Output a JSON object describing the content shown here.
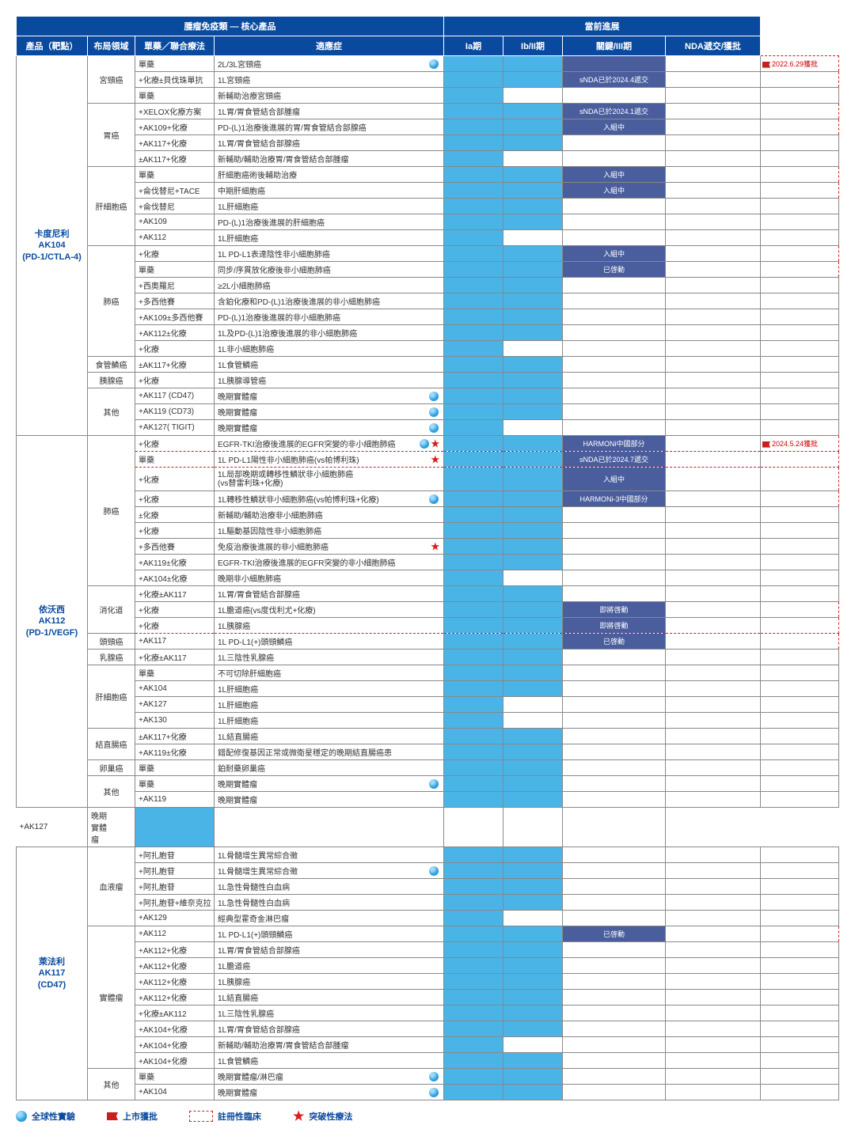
{
  "colors": {
    "header_bg": "#0a4a9e",
    "product_text": "#0a4a9e",
    "bar_light": "#4bb4e6",
    "bar_dark": "#4a5e9e",
    "dashed": "#d91c1c",
    "flag": "#c71e1e"
  },
  "headerSuper": {
    "left": "腫瘤免疫類 — 核心產品",
    "right": "當前進展"
  },
  "headers": [
    "產品（靶點）",
    "布局領域",
    "單藥／聯合療法",
    "適應症",
    "Ia期",
    "Ib/II期",
    "關鍵/III期",
    "NDA遞交/獲批"
  ],
  "legend": {
    "globe": "全球性實驗",
    "flag": "上市獲批",
    "dashed": "註冊性臨床",
    "star": "突破性療法"
  },
  "rows": [
    {
      "product": "卡度尼利\nAK104\n(PD-1/CTLA-4)",
      "prows": 24,
      "domain": "宮頸癌",
      "drows": 3,
      "therapy": "單藥",
      "indication": "2L/3L宮頸癌",
      "globe": true,
      "p": [
        "L",
        "L",
        "D",
        ""
      ],
      "nda": "2022.6.29獲批",
      "flag": true,
      "dash": "row"
    },
    {
      "therapy": "+化療±貝伐珠單抗",
      "indication": "1L宮頸癌",
      "p": [
        "L",
        "L",
        "D:sNDA已於2024.4遞交",
        ""
      ],
      "dash": "bottom"
    },
    {
      "therapy": "單藥",
      "indication": "新輔助治療宮頸癌",
      "p": [
        "L",
        "",
        "",
        ""
      ]
    },
    {
      "domain": "胃癌",
      "drows": 4,
      "therapy": "+XELOX化療方案",
      "indication": "1L胃/胃食管結合部腫瘤",
      "p": [
        "L",
        "L",
        "D:sNDA已於2024.1遞交",
        ""
      ],
      "dash": "row"
    },
    {
      "therapy": "+AK109+化療",
      "indication": "PD-(L)1治療後進展的胃/胃食管結合部腺癌",
      "p": [
        "L",
        "L",
        "D:入組中",
        ""
      ],
      "dash": "bottom"
    },
    {
      "therapy": "+AK117+化療",
      "indication": "1L胃/胃食管結合部腺癌",
      "p": [
        "L",
        "L",
        "",
        ""
      ]
    },
    {
      "therapy": "±AK117+化療",
      "indication": "新輔助/輔助治療胃/胃食管結合部腫瘤",
      "p": [
        "L",
        "",
        "",
        ""
      ]
    },
    {
      "domain": "肝細胞癌",
      "drows": 5,
      "therapy": "單藥",
      "indication": "肝細胞癌術後輔助治療",
      "p": [
        "L",
        "L",
        "D:入組中",
        ""
      ],
      "dash": "row"
    },
    {
      "therapy": "+侖伐替尼+TACE",
      "indication": "中期肝細胞癌",
      "p": [
        "L",
        "L",
        "D:入組中",
        ""
      ],
      "dash": "bottom"
    },
    {
      "therapy": "+侖伐替尼",
      "indication": "1L肝細胞癌",
      "p": [
        "L",
        "L",
        "",
        ""
      ]
    },
    {
      "therapy": "+AK109",
      "indication": "PD-(L)1治療後進展的肝細胞癌",
      "p": [
        "L",
        "L",
        "",
        ""
      ]
    },
    {
      "therapy": "+AK112",
      "indication": "1L肝細胞癌",
      "p": [
        "L",
        "",
        "",
        ""
      ]
    },
    {
      "domain": "肺癌",
      "drows": 7,
      "therapy": "+化療",
      "indication": "1L PD-L1表達陰性非小細胞肺癌",
      "p": [
        "L",
        "L",
        "D:入組中",
        ""
      ],
      "dash": "row"
    },
    {
      "therapy": "單藥",
      "indication": "同步/序貫放化療後非小細胞肺癌",
      "p": [
        "L",
        "L",
        "D:已啓動",
        ""
      ],
      "dash": "bottom"
    },
    {
      "therapy": "+西奧羅尼",
      "indication": "≥2L小細胞肺癌",
      "p": [
        "L",
        "L",
        "",
        ""
      ]
    },
    {
      "therapy": "+多西他賽",
      "indication": "含鉑化療和PD-(L)1治療後進展的非小細胞肺癌",
      "p": [
        "L",
        "L",
        "",
        ""
      ]
    },
    {
      "therapy": "+AK109±多西他賽",
      "indication": "PD-(L)1治療後進展的非小細胞肺癌",
      "p": [
        "L",
        "L",
        "",
        ""
      ]
    },
    {
      "therapy": "+AK112±化療",
      "indication": "1L及PD-(L)1治療後進展的非小細胞肺癌",
      "p": [
        "L",
        "L",
        "",
        ""
      ]
    },
    {
      "therapy": "+化療",
      "indication": "1L非小細胞肺癌",
      "p": [
        "L",
        "",
        "",
        ""
      ]
    },
    {
      "domain": "食管鱗癌",
      "drows": 1,
      "therapy": "±AK117+化療",
      "indication": "1L食管鱗癌",
      "p": [
        "L",
        "L",
        "",
        ""
      ]
    },
    {
      "domain": "胰腺癌",
      "drows": 1,
      "therapy": "+化療",
      "indication": "1L胰腺導管癌",
      "p": [
        "L",
        "L",
        "",
        ""
      ]
    },
    {
      "domain": "其他",
      "drows": 3,
      "therapy": "+AK117 (CD47)",
      "indication": "晚期實體瘤",
      "globe": true,
      "p": [
        "L",
        "L",
        "",
        ""
      ]
    },
    {
      "therapy": "+AK119 (CD73)",
      "indication": "晚期實體瘤",
      "globe": true,
      "p": [
        "L",
        "L",
        "",
        ""
      ]
    },
    {
      "therapy": "+AK127( TIGIT)",
      "indication": "晚期實體瘤",
      "globe": true,
      "p": [
        "L",
        "",
        "",
        ""
      ]
    },
    {
      "product": "依沃西\nAK112\n(PD-1/VEGF)",
      "prows": 23,
      "domain": "肺癌",
      "drows": 9,
      "therapy": "+化療",
      "indication": "EGFR-TKI治療後進展的EGFR突變的非小細胞肺癌",
      "globe": true,
      "star": true,
      "p": [
        "L",
        "L",
        "D:HARMONi中國部分",
        ""
      ],
      "nda": "2024.5.24獲批",
      "flag": true,
      "dash": "row"
    },
    {
      "therapy": "單藥",
      "indication": "1L PD-L1陽性非小細胞肺癌(vs帕博利珠)",
      "star": true,
      "p": [
        "L",
        "L",
        "D:sNDA已於2024.7遞交",
        ""
      ],
      "dash": "mid"
    },
    {
      "therapy": "+化療",
      "indication": "1L局部晚期或轉移性鱗狀非小細胞肺癌\n(vs替雷利珠+化療)",
      "p": [
        "L",
        "L",
        "D:入組中",
        ""
      ],
      "dash": "mid",
      "tall": true
    },
    {
      "therapy": "+化療",
      "indication": "1L轉移性鱗狀非小細胞肺癌(vs帕博利珠+化療)",
      "globe": true,
      "p": [
        "L",
        "L",
        "D:HARMONi-3中國部分",
        ""
      ],
      "dash": "bottom"
    },
    {
      "therapy": "±化療",
      "indication": "新輔助/輔助治療非小細胞肺癌",
      "p": [
        "L",
        "L",
        "",
        ""
      ]
    },
    {
      "therapy": "+化療",
      "indication": "1L驅動基因陰性非小細胞肺癌",
      "p": [
        "L",
        "L",
        "",
        ""
      ]
    },
    {
      "therapy": "+多西他賽",
      "indication": "免疫治療後進展的非小細胞肺癌",
      "star": true,
      "p": [
        "L",
        "L",
        "",
        ""
      ]
    },
    {
      "therapy": "+AK119±化療",
      "indication": "EGFR-TKI治療後進展的EGFR突變的非小細胞肺癌",
      "p": [
        "L",
        "L",
        "",
        ""
      ]
    },
    {
      "therapy": "+AK104±化療",
      "indication": "晚期非小細胞肺癌",
      "p": [
        "L",
        "",
        "",
        ""
      ]
    },
    {
      "domain": "消化道",
      "drows": 3,
      "therapy": "+化療±AK117",
      "indication": "1L胃/胃食管結合部腺癌",
      "p": [
        "L",
        "L",
        "",
        ""
      ]
    },
    {
      "therapy": "+化療",
      "indication": "1L膽道癌(vs度伐利尤+化療)",
      "p": [
        "L",
        "L",
        "D:即將啓動",
        ""
      ],
      "dash": "row"
    },
    {
      "therapy": "+化療",
      "indication": "1L胰腺癌",
      "p": [
        "L",
        "L",
        "D:即將啓動",
        ""
      ],
      "dash": "bottom"
    },
    {
      "domain": "頭頸癌",
      "drows": 1,
      "therapy": "+AK117",
      "indication": "1L PD-L1(+)頭頸鱗癌",
      "p": [
        "L",
        "L",
        "D:已啓動",
        ""
      ],
      "dash": "row"
    },
    {
      "domain": "乳腺癌",
      "drows": 1,
      "therapy": "+化療±AK117",
      "indication": "1L三陰性乳腺癌",
      "p": [
        "L",
        "L",
        "",
        ""
      ]
    },
    {
      "domain": "肝細胞癌",
      "drows": 4,
      "therapy": "單藥",
      "indication": "不可切除肝細胞癌",
      "p": [
        "L",
        "L",
        "",
        ""
      ]
    },
    {
      "therapy": "+AK104",
      "indication": "1L肝細胞癌",
      "p": [
        "L",
        "L",
        "",
        ""
      ]
    },
    {
      "therapy": "+AK127",
      "indication": "1L肝細胞癌",
      "p": [
        "L",
        "",
        "",
        ""
      ]
    },
    {
      "therapy": "+AK130",
      "indication": "1L肝細胞癌",
      "p": [
        "L",
        "",
        "",
        ""
      ]
    },
    {
      "domain": "結直腸癌",
      "drows": 2,
      "therapy": "±AK117+化療",
      "indication": "1L結直腸癌",
      "p": [
        "L",
        "L",
        "",
        ""
      ]
    },
    {
      "therapy": "+AK119±化療",
      "indication": "錯配修復基因正常或微衛星穩定的晚期結直腸癌患",
      "p": [
        "L",
        "L",
        "",
        ""
      ]
    },
    {
      "domain": "卵巢癌",
      "drows": 1,
      "therapy": "單藥",
      "indication": "鉑耐藥卵巢癌",
      "p": [
        "L",
        "L",
        "",
        ""
      ]
    },
    {
      "domain": "其他",
      "drows": 2,
      "therapy": "單藥",
      "indication": "晚期實體瘤",
      "globe": true,
      "p": [
        "L",
        "L",
        "",
        ""
      ]
    },
    {
      "therapy": "+AK119",
      "indication": "晚期實體瘤",
      "p": [
        "L",
        "L",
        "",
        ""
      ]
    },
    {
      "therapy": "+AK127",
      "indication": "晚期實體瘤",
      "p": [
        "L",
        "",
        "",
        ""
      ],
      "extraDomain": true
    },
    {
      "product": "萊法利\nAK117\n(CD47)",
      "prows": 16,
      "domain": "血液瘤",
      "drows": 5,
      "therapy": "+阿扎胞苷",
      "indication": "1L骨髓增生異常綜合徵",
      "p": [
        "L",
        "L",
        "",
        ""
      ]
    },
    {
      "therapy": "+阿扎胞苷",
      "indication": "1L骨髓增生異常綜合徵",
      "globe": true,
      "p": [
        "L",
        "L",
        "",
        ""
      ]
    },
    {
      "therapy": "+阿扎胞苷",
      "indication": "1L急性骨髓性白血病",
      "p": [
        "L",
        "L",
        "",
        ""
      ]
    },
    {
      "therapy": "+阿扎胞苷+維奈克拉",
      "indication": "1L急性骨髓性白血病",
      "p": [
        "L",
        "L",
        "",
        ""
      ]
    },
    {
      "therapy": "+AK129",
      "indication": "經典型霍奇金淋巴瘤",
      "p": [
        "L",
        "",
        "",
        ""
      ]
    },
    {
      "domain": "實體瘤",
      "drows": 9,
      "therapy": "+AK112",
      "indication": "1L PD-L1(+)頭頸鱗癌",
      "p": [
        "L",
        "L",
        "D:已啓動",
        ""
      ],
      "dash": "row"
    },
    {
      "therapy": "+AK112+化療",
      "indication": "1L胃/胃食管結合部腺癌",
      "p": [
        "L",
        "L",
        "",
        ""
      ]
    },
    {
      "therapy": "+AK112+化療",
      "indication": "1L膽道癌",
      "p": [
        "L",
        "L",
        "",
        ""
      ]
    },
    {
      "therapy": "+AK112+化療",
      "indication": "1L胰腺癌",
      "p": [
        "L",
        "L",
        "",
        ""
      ]
    },
    {
      "therapy": "+AK112+化療",
      "indication": "1L結直腸癌",
      "p": [
        "L",
        "L",
        "",
        ""
      ]
    },
    {
      "therapy": "+化療±AK112",
      "indication": "1L三陰性乳腺癌",
      "p": [
        "L",
        "L",
        "",
        ""
      ]
    },
    {
      "therapy": "+AK104+化療",
      "indication": "1L胃/胃食管結合部腺癌",
      "p": [
        "L",
        "L",
        "",
        ""
      ]
    },
    {
      "therapy": "+AK104+化療",
      "indication": "新輔助/輔助治療胃/胃食管結合部腫瘤",
      "p": [
        "L",
        "",
        "",
        ""
      ]
    },
    {
      "therapy": "+AK104+化療",
      "indication": "1L食管鱗癌",
      "p": [
        "L",
        "L",
        "",
        ""
      ]
    },
    {
      "domain": "其他",
      "drows": 2,
      "therapy": "單藥",
      "indication": "晚期實體瘤/淋巴瘤",
      "globe": true,
      "p": [
        "L",
        "L",
        "",
        ""
      ]
    },
    {
      "therapy": "+AK104",
      "indication": "晚期實體瘤",
      "globe": true,
      "p": [
        "L",
        "L",
        "",
        ""
      ]
    }
  ]
}
